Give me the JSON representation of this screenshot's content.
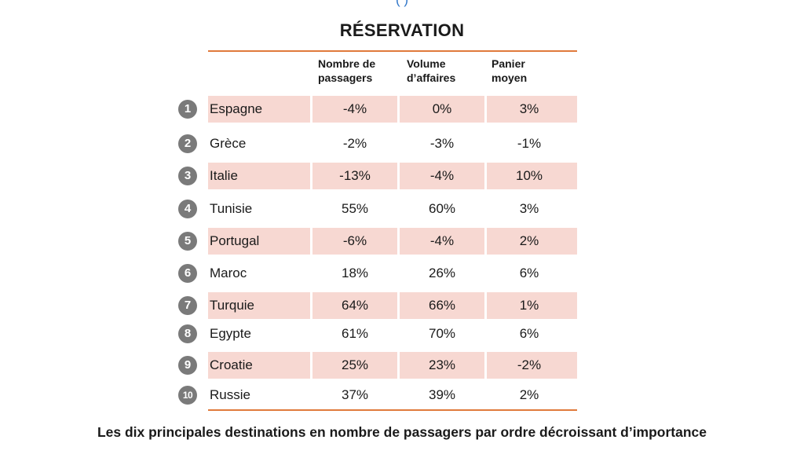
{
  "top_text": "(                                                                                              )",
  "chart_data": {
    "type": "table",
    "title": "RÉSERVATION",
    "columns": [
      [
        "Nombre de",
        "passagers"
      ],
      [
        "Volume",
        "d’affaires"
      ],
      [
        "Panier",
        "moyen"
      ]
    ],
    "rows": [
      {
        "rank": "1",
        "country": "Espagne",
        "values": [
          "-4%",
          "0%",
          "3%"
        ]
      },
      {
        "rank": "2",
        "country": "Grèce",
        "values": [
          "-2%",
          "-3%",
          "-1%"
        ]
      },
      {
        "rank": "3",
        "country": "Italie",
        "values": [
          "-13%",
          "-4%",
          "10%"
        ]
      },
      {
        "rank": "4",
        "country": "Tunisie",
        "values": [
          "55%",
          "60%",
          "3%"
        ]
      },
      {
        "rank": "5",
        "country": "Portugal",
        "values": [
          "-6%",
          "-4%",
          "2%"
        ]
      },
      {
        "rank": "6",
        "country": "Maroc",
        "values": [
          "18%",
          "26%",
          "6%"
        ]
      },
      {
        "rank": "7",
        "country": "Turquie",
        "values": [
          "64%",
          "66%",
          "1%"
        ]
      },
      {
        "rank": "8",
        "country": "Egypte",
        "values": [
          "61%",
          "70%",
          "6%"
        ]
      },
      {
        "rank": "9",
        "country": "Croatie",
        "values": [
          "25%",
          "23%",
          "-2%"
        ]
      },
      {
        "rank": "10",
        "country": "Russie",
        "values": [
          "37%",
          "39%",
          "2%"
        ]
      }
    ],
    "shaded_rows": [
      0,
      2,
      4,
      6,
      8
    ],
    "caption": "Les dix principales destinations en nombre de passagers par ordre décroissant d’importance"
  },
  "colors": {
    "rule": "#e07a3c",
    "shade": "#f7d8d2",
    "rank_badge": "#7a7a7a",
    "top_text": "#2e75c8"
  }
}
